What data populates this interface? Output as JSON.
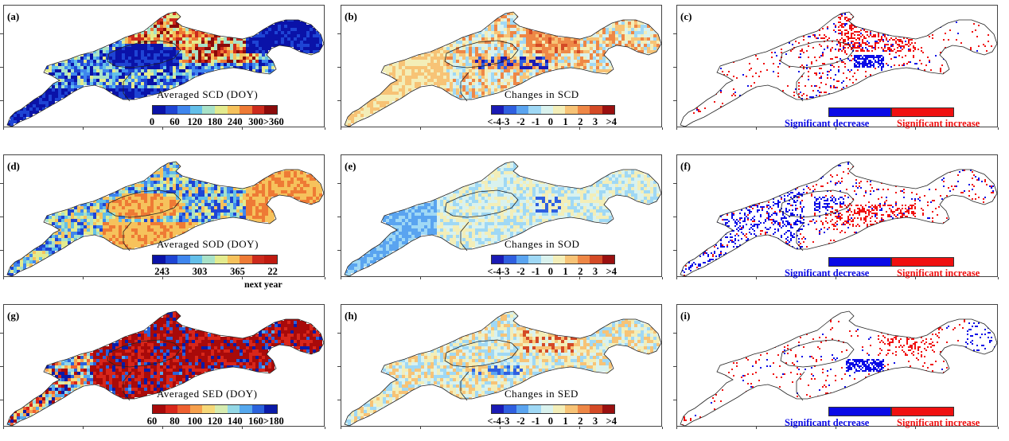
{
  "panels": [
    {
      "id": "a",
      "label": "(a)",
      "kind": "mean",
      "title": "Averaged  SCD  (DOY)",
      "ticks": [
        "0",
        "60",
        "120",
        "180",
        "240",
        "300>360"
      ],
      "colors": [
        "#0a12a8",
        "#1e44d4",
        "#3f86ee",
        "#63bfe9",
        "#a8e2c8",
        "#e3eb8e",
        "#f6c25c",
        "#ee7a35",
        "#cc2a1c",
        "#8a0a0a"
      ],
      "theme": "scd"
    },
    {
      "id": "b",
      "label": "(b)",
      "kind": "change",
      "title": "Changes  in  SCD",
      "ticks": [
        "<-4-3",
        "-2",
        "-1",
        "0",
        "1",
        "2",
        "3",
        ">4"
      ],
      "colors": [
        "#1a1ab4",
        "#2f5fe0",
        "#5aa4f0",
        "#9fd8f5",
        "#d9f2ee",
        "#f3eeb8",
        "#f7c376",
        "#ee8746",
        "#d44a26",
        "#9a1010"
      ],
      "theme": "chg_b"
    },
    {
      "id": "c",
      "label": "(c)",
      "kind": "sig",
      "theme": "sig_c"
    },
    {
      "id": "d",
      "label": "(d)",
      "kind": "mean",
      "title": "Averaged  SOD  (DOY)",
      "ticks": [
        "243",
        "303",
        "365",
        "22"
      ],
      "extra": "next year",
      "colors": [
        "#0a12a8",
        "#1e44d4",
        "#3f86ee",
        "#63bfe9",
        "#a8e2c8",
        "#e3eb8e",
        "#f6c25c",
        "#ee7a35",
        "#cc2a1c",
        "#c01a10"
      ],
      "theme": "sod"
    },
    {
      "id": "e",
      "label": "(e)",
      "kind": "change",
      "title": "Changes  in  SOD",
      "ticks": [
        "<-4-3",
        "-2",
        "-1",
        "0",
        "1",
        "2",
        "3",
        ">4"
      ],
      "colors": [
        "#1a1ab4",
        "#2f5fe0",
        "#5aa4f0",
        "#9fd8f5",
        "#d9f2ee",
        "#f3eeb8",
        "#f7c376",
        "#ee8746",
        "#d44a26",
        "#9a1010"
      ],
      "theme": "chg_e"
    },
    {
      "id": "f",
      "label": "(f)",
      "kind": "sig",
      "theme": "sig_f"
    },
    {
      "id": "g",
      "label": "(g)",
      "kind": "mean",
      "title": "Averaged  SED  (DOY)",
      "ticks": [
        "60",
        "80",
        "100",
        "120",
        "140",
        "160>180"
      ],
      "colors": [
        "#a80a0a",
        "#d8261a",
        "#ee6030",
        "#f6a04c",
        "#f6d878",
        "#d6ecb0",
        "#94d8e6",
        "#55a8ee",
        "#2a62dc",
        "#0a1aa8"
      ],
      "theme": "sed"
    },
    {
      "id": "h",
      "label": "(h)",
      "kind": "change",
      "title": "Changes  in  SED",
      "ticks": [
        "<-4-3",
        "-2",
        "-1",
        "0",
        "1",
        "2",
        "3",
        ">4"
      ],
      "colors": [
        "#1a1ab4",
        "#2f5fe0",
        "#5aa4f0",
        "#9fd8f5",
        "#d9f2ee",
        "#f3eeb8",
        "#f7c376",
        "#ee8746",
        "#d44a26",
        "#9a1010"
      ],
      "theme": "chg_h"
    },
    {
      "id": "i",
      "label": "(i)",
      "kind": "sig",
      "theme": "sig_i"
    }
  ],
  "significance": {
    "decrease_label": "Significant decrease",
    "increase_label": "Significant increase",
    "decrease_color": "#0a0ae6",
    "increase_color": "#f01010"
  }
}
